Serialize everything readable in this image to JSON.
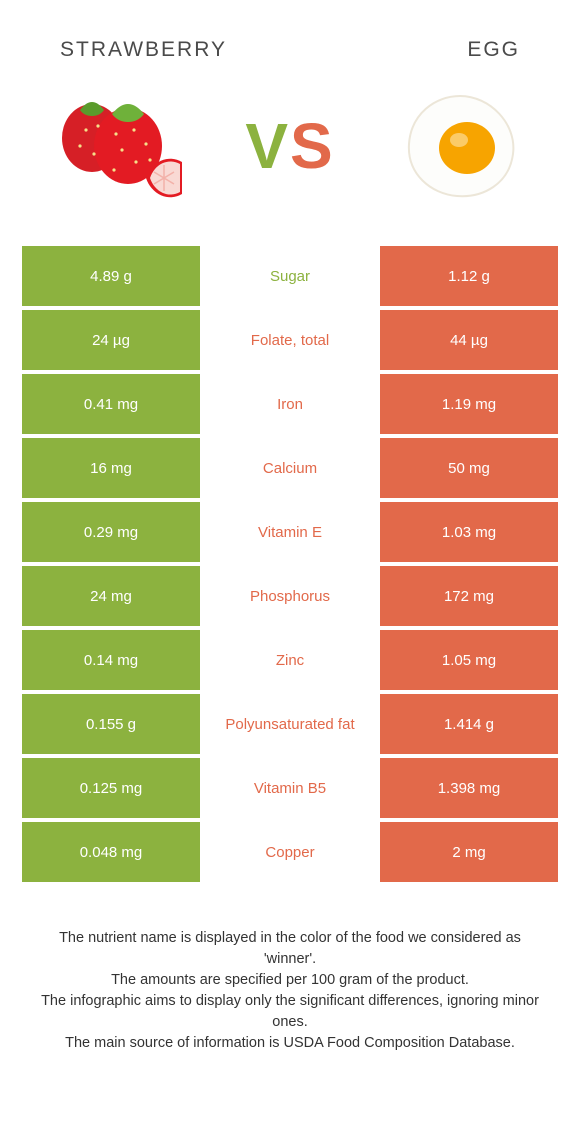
{
  "header": {
    "left_title": "STRAWBERRY",
    "right_title": "EGG"
  },
  "vs": {
    "v": "V",
    "s": "S"
  },
  "colors": {
    "left": "#8cb23f",
    "right": "#e2694a",
    "text_dark": "#4a4a4a",
    "white": "#ffffff"
  },
  "table": {
    "rows": [
      {
        "left": "4.89 g",
        "label": "Sugar",
        "right": "1.12 g",
        "winner": "left"
      },
      {
        "left": "24 µg",
        "label": "Folate, total",
        "right": "44 µg",
        "winner": "right"
      },
      {
        "left": "0.41 mg",
        "label": "Iron",
        "right": "1.19 mg",
        "winner": "right"
      },
      {
        "left": "16 mg",
        "label": "Calcium",
        "right": "50 mg",
        "winner": "right"
      },
      {
        "left": "0.29 mg",
        "label": "Vitamin E",
        "right": "1.03 mg",
        "winner": "right"
      },
      {
        "left": "24 mg",
        "label": "Phosphorus",
        "right": "172 mg",
        "winner": "right"
      },
      {
        "left": "0.14 mg",
        "label": "Zinc",
        "right": "1.05 mg",
        "winner": "right"
      },
      {
        "left": "0.155 g",
        "label": "Polyunsaturated fat",
        "right": "1.414 g",
        "winner": "right"
      },
      {
        "left": "0.125 mg",
        "label": "Vitamin B5",
        "right": "1.398 mg",
        "winner": "right"
      },
      {
        "left": "0.048 mg",
        "label": "Copper",
        "right": "2 mg",
        "winner": "right"
      }
    ]
  },
  "footer": {
    "line1": "The nutrient name is displayed in the color of the food we considered as 'winner'.",
    "line2": "The amounts are specified per 100 gram of the product.",
    "line3": "The infographic aims to display only the significant differences, ignoring minor ones.",
    "line4": "The main source of information is USDA Food Composition Database."
  }
}
